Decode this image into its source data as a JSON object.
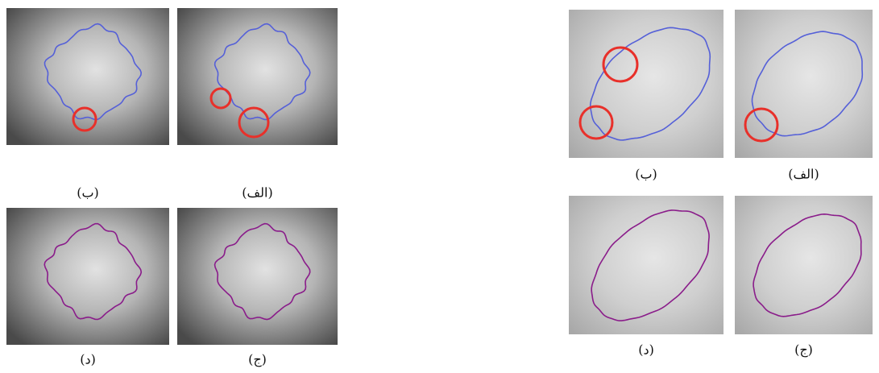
{
  "figures": [
    {
      "panels": [
        {
          "label": "(ب)"
        },
        {
          "label": "(الف)"
        },
        {
          "label": "(د)"
        },
        {
          "label": "(ج)"
        }
      ]
    },
    {
      "panels": [
        {
          "label": "(ب)"
        },
        {
          "label": "(الف)"
        },
        {
          "label": "(د)"
        },
        {
          "label": "(ج)"
        }
      ]
    }
  ]
}
